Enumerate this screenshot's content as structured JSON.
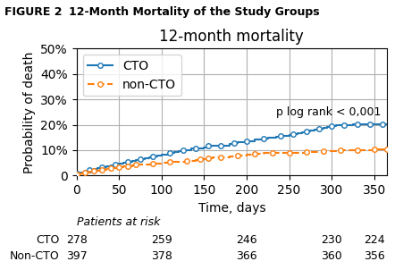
{
  "chart_data": {
    "type": "step",
    "title": "12-month mortality",
    "figure_label": "FIGURE 2",
    "figure_title": "12-Month Mortality of the Study Groups",
    "x_label": "Time, days",
    "y_label": "Probability of death",
    "xlim": [
      0,
      365
    ],
    "ylim": [
      0,
      0.5
    ],
    "xticks": [
      0,
      50,
      100,
      150,
      200,
      250,
      300,
      350
    ],
    "yticks": [
      0,
      {
        "value": 0.1,
        "label": "10%"
      },
      {
        "value": 0.2,
        "label": "20%"
      },
      {
        "value": 0.3,
        "label": "30%"
      },
      {
        "value": 0.4,
        "label": "40%"
      },
      {
        "value": 0.5,
        "label": "50%"
      }
    ],
    "grid": true,
    "legend": "upper left",
    "series": [
      {
        "name": "CTO",
        "line_style": "solid",
        "marker": "circle",
        "x": [
          0,
          5,
          10,
          15,
          20,
          25,
          30,
          35,
          40,
          45,
          50,
          55,
          60,
          65,
          70,
          75,
          80,
          85,
          90,
          95,
          100,
          110,
          115,
          120,
          125,
          130,
          135,
          140,
          145,
          150,
          155,
          160,
          165,
          170,
          175,
          180,
          185,
          190,
          195,
          200,
          210,
          215,
          220,
          225,
          235,
          240,
          245,
          250,
          255,
          260,
          265,
          270,
          275,
          280,
          285,
          290,
          295,
          300,
          305,
          310,
          315,
          320,
          325,
          330,
          335,
          340,
          345,
          350,
          355,
          360,
          365
        ],
        "values": [
          0.007,
          0.011,
          0.018,
          0.022,
          0.025,
          0.029,
          0.033,
          0.036,
          0.04,
          0.044,
          0.047,
          0.051,
          0.054,
          0.058,
          0.062,
          0.065,
          0.069,
          0.073,
          0.076,
          0.08,
          0.083,
          0.09,
          0.094,
          0.097,
          0.101,
          0.101,
          0.105,
          0.108,
          0.108,
          0.112,
          0.116,
          0.119,
          0.119,
          0.119,
          0.119,
          0.123,
          0.127,
          0.13,
          0.13,
          0.134,
          0.141,
          0.141,
          0.145,
          0.148,
          0.152,
          0.156,
          0.156,
          0.159,
          0.163,
          0.166,
          0.17,
          0.173,
          0.177,
          0.181,
          0.184,
          0.188,
          0.192,
          0.195,
          0.199,
          0.199,
          0.199,
          0.199,
          0.203,
          0.203,
          0.203,
          0.203,
          0.203,
          0.203,
          0.203,
          0.203,
          0.203
        ]
      },
      {
        "name": "non-CTO",
        "line_style": "dashed",
        "marker": "circle",
        "x": [
          0,
          5,
          10,
          15,
          20,
          25,
          30,
          35,
          40,
          45,
          50,
          55,
          60,
          65,
          70,
          80,
          90,
          100,
          110,
          120,
          130,
          140,
          145,
          150,
          155,
          160,
          170,
          180,
          190,
          200,
          210,
          220,
          230,
          240,
          250,
          260,
          270,
          280,
          290,
          300,
          310,
          320,
          330,
          340,
          350,
          360,
          365
        ],
        "values": [
          0.005,
          0.008,
          0.013,
          0.015,
          0.018,
          0.02,
          0.023,
          0.025,
          0.028,
          0.03,
          0.033,
          0.035,
          0.038,
          0.04,
          0.043,
          0.045,
          0.048,
          0.05,
          0.053,
          0.055,
          0.058,
          0.06,
          0.063,
          0.065,
          0.068,
          0.07,
          0.073,
          0.075,
          0.078,
          0.083,
          0.085,
          0.088,
          0.088,
          0.09,
          0.09,
          0.09,
          0.093,
          0.093,
          0.095,
          0.095,
          0.098,
          0.098,
          0.1,
          0.1,
          0.103,
          0.103,
          0.103
        ]
      }
    ],
    "annotations": [
      {
        "text": "p log rank < 0,001",
        "x": 235,
        "y": 0.228
      }
    ],
    "risk_table": {
      "title": "Patients at risk",
      "x": [
        0,
        100,
        200,
        300,
        350
      ],
      "rows": [
        {
          "name": "CTO",
          "values": [
            278,
            259,
            246,
            230,
            224
          ]
        },
        {
          "name": "Non-CTO",
          "values": [
            397,
            378,
            366,
            360,
            356
          ]
        }
      ]
    }
  }
}
